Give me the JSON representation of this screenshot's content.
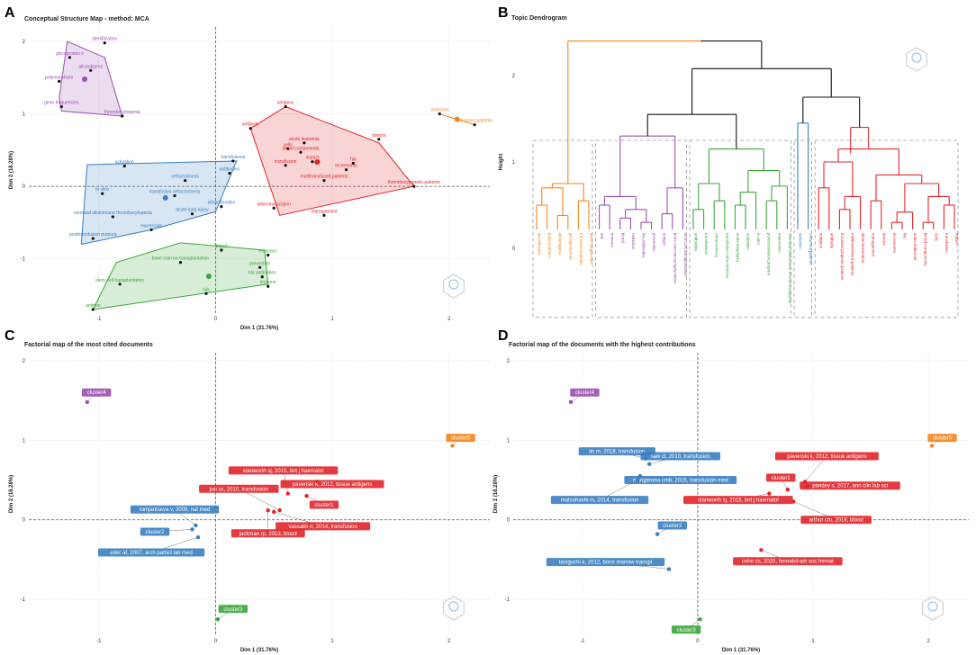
{
  "panels": {
    "A": "A",
    "B": "B",
    "C": "C",
    "D": "D"
  },
  "colors": {
    "purple": "#9b4fb0",
    "blue": "#3a7fc0",
    "red": "#e0262b",
    "green": "#3aa63a",
    "orange": "#f2861e"
  },
  "chart_data": [
    {
      "id": "A",
      "type": "scatter",
      "title": "Conceptual Structure Map - method: MCA",
      "xlabel": "Dim 1 (31.76%)",
      "ylabel": "Dim 2 (18.28%)",
      "xlim": [
        -1.6,
        2.35
      ],
      "ylim": [
        -1.75,
        2.2
      ],
      "xticks": [
        -1,
        0,
        1,
        2
      ],
      "yticks": [
        -1,
        0,
        1,
        2
      ],
      "clusters": [
        {
          "name": "purple",
          "hull": [
            [
              -1.27,
              2.0
            ],
            [
              -1.34,
              1.22
            ],
            [
              -1.32,
              1.04
            ],
            [
              -0.8,
              0.97
            ],
            [
              -0.95,
              1.78
            ]
          ],
          "points": [
            {
              "label": "identification",
              "x": -0.95,
              "y": 1.98
            },
            {
              "label": "glycoprotein ii",
              "x": -1.25,
              "y": 1.78
            },
            {
              "label": "alloantigens",
              "x": -1.07,
              "y": 1.6
            },
            {
              "label": "polymorphism",
              "x": -1.34,
              "y": 1.45
            },
            {
              "label": "gene frequencies",
              "x": -1.32,
              "y": 1.1
            },
            {
              "label": "thrombocytopenia",
              "x": -0.8,
              "y": 0.97
            }
          ]
        },
        {
          "name": "blue",
          "hull": [
            [
              -1.1,
              0.3
            ],
            [
              -1.15,
              -0.8
            ],
            [
              -0.55,
              -0.6
            ],
            [
              0.0,
              -0.35
            ],
            [
              0.18,
              0.35
            ]
          ],
          "points": [
            {
              "label": "activation",
              "x": -0.78,
              "y": 0.28
            },
            {
              "label": "transfusions",
              "x": 0.15,
              "y": 0.35
            },
            {
              "label": "antibodies",
              "x": 0.12,
              "y": 0.18
            },
            {
              "label": "refractoriness",
              "x": -0.26,
              "y": 0.08
            },
            {
              "label": "in vitro",
              "x": -0.97,
              "y": -0.1
            },
            {
              "label": "transfusion.refractoriness",
              "x": -0.35,
              "y": -0.13
            },
            {
              "label": "alloantibodies",
              "x": 0.05,
              "y": -0.28
            },
            {
              "label": "neonatal alloimmune thrombocytopenia",
              "x": -0.88,
              "y": -0.42
            },
            {
              "label": "acute lung injury",
              "x": -0.2,
              "y": -0.38
            },
            {
              "label": "expression",
              "x": -0.55,
              "y": -0.6
            },
            {
              "label": "posttransfusion purpura",
              "x": -1.05,
              "y": -0.72
            }
          ]
        },
        {
          "name": "red",
          "hull": [
            [
              0.3,
              0.8
            ],
            [
              0.55,
              -0.4
            ],
            [
              1.7,
              0.0
            ],
            [
              1.4,
              0.6
            ],
            [
              0.6,
              1.1
            ]
          ],
          "points": [
            {
              "label": "antigens",
              "x": 0.6,
              "y": 1.1
            },
            {
              "label": "antibody",
              "x": 0.3,
              "y": 0.8
            },
            {
              "label": "donors",
              "x": 1.4,
              "y": 0.65
            },
            {
              "label": "acute leukemia",
              "x": 0.76,
              "y": 0.6
            },
            {
              "label": "cells",
              "x": 0.62,
              "y": 0.52
            },
            {
              "label": "blood components",
              "x": 0.73,
              "y": 0.47
            },
            {
              "label": "hla",
              "x": 1.18,
              "y": 0.32
            },
            {
              "label": "impact",
              "x": 0.83,
              "y": 0.34
            },
            {
              "label": "transfusion",
              "x": 0.6,
              "y": 0.29
            },
            {
              "label": "increments",
              "x": 1.12,
              "y": 0.23
            },
            {
              "label": "multitransfused.patients",
              "x": 0.93,
              "y": 0.08
            },
            {
              "label": "thrombocytopenic.patients",
              "x": 1.7,
              "y": 0.0
            },
            {
              "label": "alloimmunization",
              "x": 0.5,
              "y": -0.3
            },
            {
              "label": "management",
              "x": 0.93,
              "y": -0.4
            }
          ]
        },
        {
          "name": "green",
          "hull": [
            [
              -0.85,
              -1.05
            ],
            [
              -1.05,
              -1.7
            ],
            [
              0.45,
              -1.35
            ],
            [
              0.42,
              -0.88
            ],
            [
              -0.3,
              -0.78
            ]
          ],
          "points": [
            {
              "label": "blood",
              "x": 0.05,
              "y": -0.88
            },
            {
              "label": "reduction",
              "x": 0.45,
              "y": -0.95
            },
            {
              "label": "bone marrow transplantation",
              "x": -0.3,
              "y": -1.05
            },
            {
              "label": "prevention",
              "x": 0.38,
              "y": -1.12
            },
            {
              "label": "hla antibodies",
              "x": 0.4,
              "y": -1.25
            },
            {
              "label": "stem cell transplantation",
              "x": -0.82,
              "y": -1.35
            },
            {
              "label": "immune",
              "x": 0.45,
              "y": -1.38
            },
            {
              "label": "risk",
              "x": -0.08,
              "y": -1.48
            },
            {
              "label": "antigen",
              "x": -1.05,
              "y": -1.7
            }
          ]
        },
        {
          "name": "orange",
          "hull": [
            [
              1.92,
              1.0
            ],
            [
              2.22,
              0.85
            ]
          ],
          "points": [
            {
              "label": "selection",
              "x": 1.92,
              "y": 1.0
            },
            {
              "label": "refractory.patients",
              "x": 2.22,
              "y": 0.85
            }
          ]
        }
      ]
    },
    {
      "id": "B",
      "type": "dendrogram",
      "title": "Topic Dendrogram",
      "ylabel": "Height",
      "yticks": [
        0,
        1,
        2
      ],
      "leaves": [
        {
          "label": "identification",
          "color": "orange"
        },
        {
          "label": "polymorphism",
          "color": "orange"
        },
        {
          "label": "alloantigens",
          "color": "orange"
        },
        {
          "label": "glycoprotein.iia",
          "color": "orange"
        },
        {
          "label": "thrombocytopenia",
          "color": "orange"
        },
        {
          "label": "gene.frequencies",
          "color": "orange"
        },
        {
          "label": "risk",
          "color": "purple"
        },
        {
          "label": "immune",
          "color": "purple"
        },
        {
          "label": "blood",
          "color": "purple"
        },
        {
          "label": "reduction",
          "color": "purple"
        },
        {
          "label": "hla.antibodies",
          "color": "purple"
        },
        {
          "label": "prevention",
          "color": "purple"
        },
        {
          "label": "antigen",
          "color": "purple"
        },
        {
          "label": "bone.marrow.transplantation",
          "color": "purple"
        },
        {
          "label": "stem.cell.transplantation",
          "color": "purple"
        },
        {
          "label": "antibodies",
          "color": "green"
        },
        {
          "label": "transfusions",
          "color": "green"
        },
        {
          "label": "refractoriness",
          "color": "green"
        },
        {
          "label": "transfusion.refractoriness",
          "color": "green"
        },
        {
          "label": "acute.lung.injury",
          "color": "green"
        },
        {
          "label": "activation",
          "color": "green"
        },
        {
          "label": "in.vitro",
          "color": "green"
        },
        {
          "label": "posttransfusion.purpura",
          "color": "green"
        },
        {
          "label": "expression",
          "color": "green"
        },
        {
          "label": "neonatal.alloimmune.thrombocytopenia",
          "color": "green"
        },
        {
          "label": "selection",
          "color": "blue"
        },
        {
          "label": "refractory.patients",
          "color": "blue"
        },
        {
          "label": "antigens",
          "color": "red"
        },
        {
          "label": "antibody",
          "color": "red"
        },
        {
          "label": "thrombocytopenic.patients",
          "color": "red"
        },
        {
          "label": "multitransfused.patients",
          "color": "red"
        },
        {
          "label": "alloimmunization",
          "color": "red"
        },
        {
          "label": "management",
          "color": "red"
        },
        {
          "label": "donors",
          "color": "red"
        },
        {
          "label": "increments",
          "color": "red"
        },
        {
          "label": "hla",
          "color": "red"
        },
        {
          "label": "acute.leukemia",
          "color": "red"
        },
        {
          "label": "blood.components",
          "color": "red"
        },
        {
          "label": "cells",
          "color": "red"
        },
        {
          "label": "transfusion",
          "color": "red"
        },
        {
          "label": "impact",
          "color": "red"
        }
      ]
    },
    {
      "id": "C",
      "type": "scatter",
      "title": "Factorial map of the most cited documents",
      "xlabel": "Dim 1 (31.76%)",
      "ylabel": "Dim 2 (18.28%)",
      "xlim": [
        -1.6,
        2.35
      ],
      "ylim": [
        -1.45,
        2.1
      ],
      "xticks": [
        -1,
        0,
        1,
        2
      ],
      "yticks": [
        -1,
        0,
        1,
        2
      ],
      "points": [
        {
          "label": "cluster4",
          "color": "purple",
          "x": -1.1,
          "y": 1.48,
          "box": true,
          "lx": -1.02,
          "ly": 1.6
        },
        {
          "label": "cluster5",
          "color": "orange",
          "x": 2.03,
          "y": 0.93,
          "box": true,
          "lx": 2.1,
          "ly": 1.03
        },
        {
          "label": "stanworth sj, 2015, brit j haematol",
          "color": "red",
          "x": 0.62,
          "y": 0.33,
          "box": true,
          "lx": 0.58,
          "ly": 0.62
        },
        {
          "label": "pavenski k, 2012, tissue antigens",
          "color": "red",
          "x": 0.87,
          "y": 0.48,
          "box": true,
          "lx": 1.0,
          "ly": 0.45
        },
        {
          "label": "pai sc, 2010, transfusion",
          "color": "red",
          "x": 0.55,
          "y": 0.12,
          "box": true,
          "lx": 0.2,
          "ly": 0.39
        },
        {
          "label": "cluster1",
          "color": "red",
          "x": 0.78,
          "y": 0.3,
          "box": true,
          "lx": 0.93,
          "ly": 0.19
        },
        {
          "label": "rumjantseva v, 2009, nat med",
          "color": "blue",
          "x": -0.17,
          "y": -0.07,
          "box": true,
          "lx": -0.35,
          "ly": 0.13
        },
        {
          "label": "cluster2",
          "color": "blue",
          "x": -0.2,
          "y": -0.12,
          "box": true,
          "lx": -0.52,
          "ly": -0.15
        },
        {
          "label": "jackman rp, 2013, blood",
          "color": "red",
          "x": 0.45,
          "y": 0.12,
          "box": true,
          "lx": 0.45,
          "ly": -0.17
        },
        {
          "label": "vassallo rr, 2014, transfusion",
          "color": "red",
          "x": 0.5,
          "y": 0.1,
          "box": true,
          "lx": 0.92,
          "ly": -0.08
        },
        {
          "label": "eder af, 2007, arch pathol lab med",
          "color": "blue",
          "x": -0.15,
          "y": -0.22,
          "box": true,
          "lx": -0.55,
          "ly": -0.41
        },
        {
          "label": "cluster3",
          "color": "green",
          "x": 0.02,
          "y": -1.25,
          "box": true,
          "lx": 0.15,
          "ly": -1.12
        }
      ]
    },
    {
      "id": "D",
      "type": "scatter",
      "title": "Factorial map of the documents with the highest contributions",
      "xlabel": "Dim 1 (31.76%)",
      "ylabel": "Dim 2 (18.28%)",
      "xlim": [
        -1.6,
        2.35
      ],
      "ylim": [
        -1.45,
        2.1
      ],
      "xticks": [
        -1,
        0,
        1,
        2
      ],
      "yticks": [
        -1,
        0,
        1,
        2
      ],
      "points": [
        {
          "label": "cluster4",
          "color": "purple",
          "x": -1.1,
          "y": 1.48,
          "box": true,
          "lx": -0.98,
          "ly": 1.6
        },
        {
          "label": "cluster5",
          "color": "orange",
          "x": 2.03,
          "y": 0.93,
          "box": true,
          "lx": 2.12,
          "ly": 1.03
        },
        {
          "label": "lin m, 2018, transfusion",
          "color": "blue",
          "x": -0.45,
          "y": 0.77,
          "box": true,
          "lx": -0.7,
          "ly": 0.86
        },
        {
          "label": "saw cl, 2010, transfusion",
          "color": "blue",
          "x": -0.42,
          "y": 0.7,
          "box": true,
          "lx": -0.15,
          "ly": 0.8
        },
        {
          "label": "mangerona cmb, 2015, transfusion med",
          "color": "blue",
          "x": -0.5,
          "y": 0.55,
          "box": true,
          "lx": -0.15,
          "ly": 0.5
        },
        {
          "label": "matsuhashi m, 2014, transfusion",
          "color": "blue",
          "x": -0.52,
          "y": 0.5,
          "box": true,
          "lx": -0.85,
          "ly": 0.25
        },
        {
          "label": "pavenski k, 2012, tissue antigens",
          "color": "red",
          "x": 0.93,
          "y": 0.48,
          "box": true,
          "lx": 1.12,
          "ly": 0.8
        },
        {
          "label": "cluster1",
          "color": "red",
          "x": 0.78,
          "y": 0.38,
          "box": true,
          "lx": 0.72,
          "ly": 0.53
        },
        {
          "label": "pandey s, 2017, ann clin lab sci",
          "color": "red",
          "x": 0.95,
          "y": 0.42,
          "box": true,
          "lx": 1.32,
          "ly": 0.43
        },
        {
          "label": "stanworth sj, 2015, brit j haematol",
          "color": "red",
          "x": 0.62,
          "y": 0.33,
          "box": true,
          "lx": 0.35,
          "ly": 0.25
        },
        {
          "label": "arthur cm, 2018, blood",
          "color": "red",
          "x": 0.83,
          "y": 0.23,
          "box": true,
          "lx": 1.2,
          "ly": 0.0
        },
        {
          "label": "cluster2",
          "color": "blue",
          "x": -0.35,
          "y": -0.18,
          "box": true,
          "lx": -0.22,
          "ly": -0.07
        },
        {
          "label": "taniguchi k, 2012, bone marrow transpl",
          "color": "blue",
          "x": -0.25,
          "y": -0.62,
          "box": true,
          "lx": -0.8,
          "ly": -0.53
        },
        {
          "label": "cohn cs, 2020, hematol-am soc hemat",
          "color": "red",
          "x": 0.55,
          "y": -0.38,
          "box": true,
          "lx": 0.78,
          "ly": -0.52
        },
        {
          "label": "cluster3",
          "color": "green",
          "x": 0.02,
          "y": -1.25,
          "box": true,
          "lx": -0.1,
          "ly": -1.38
        }
      ]
    }
  ]
}
